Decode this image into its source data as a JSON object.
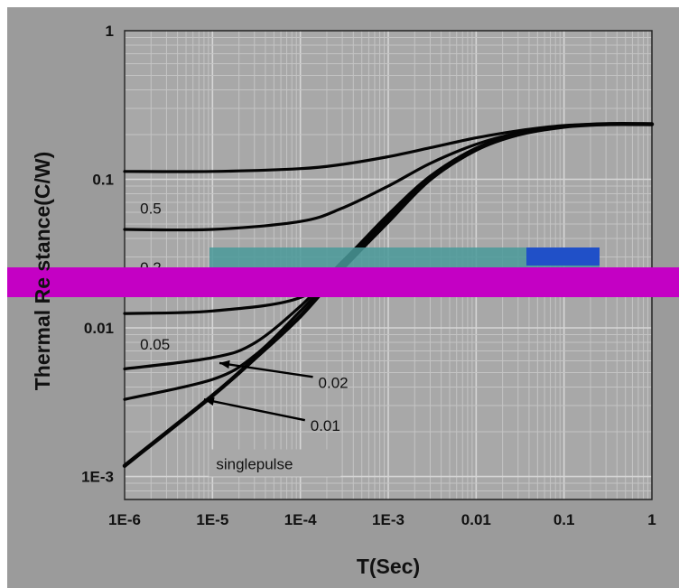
{
  "chart_data": {
    "type": "line",
    "title": "",
    "xlabel": "T(Sec)",
    "ylabel": "Thermal Resistance(C/W)",
    "ylabel_visible": "Thermal Re stance(C/W)",
    "x_scale": "log",
    "y_scale": "log",
    "xlim": [
      1e-06,
      1
    ],
    "ylim": [
      0.0007,
      1
    ],
    "grid": true,
    "legend": "none",
    "x_ticks": [
      "1E-6",
      "1E-5",
      "1E-4",
      "1E-3",
      "0.01",
      "0.1",
      "1"
    ],
    "y_ticks": [
      "1E-3",
      "0.01",
      "0.1",
      "1"
    ],
    "colors": {
      "background": "#9b9b9b",
      "plot_background": "#a8a8a8",
      "grid": "#c4c4c4",
      "curve": "#050505",
      "overlay_band": "#c400c4"
    },
    "series": [
      {
        "name": "0.5",
        "x": [
          1e-06,
          1e-05,
          0.0001,
          0.0003,
          0.001,
          0.003,
          0.01,
          0.03,
          0.1,
          0.3,
          1
        ],
        "y": [
          0.113,
          0.113,
          0.118,
          0.126,
          0.142,
          0.163,
          0.19,
          0.212,
          0.23,
          0.235,
          0.235
        ]
      },
      {
        "name": "0.2",
        "x": [
          1e-06,
          1e-05,
          0.0001,
          0.0003,
          0.001,
          0.003,
          0.01,
          0.03,
          0.1,
          0.3,
          1
        ],
        "y": [
          0.046,
          0.046,
          0.052,
          0.064,
          0.09,
          0.128,
          0.172,
          0.205,
          0.228,
          0.235,
          0.235
        ]
      },
      {
        "name": "0.05",
        "x": [
          1e-06,
          1e-05,
          0.0001,
          0.0003,
          0.001,
          0.003,
          0.01,
          0.03,
          0.1,
          0.3,
          1
        ],
        "y": [
          0.0125,
          0.013,
          0.016,
          0.028,
          0.058,
          0.105,
          0.162,
          0.2,
          0.227,
          0.235,
          0.235
        ]
      },
      {
        "name": "0.02",
        "x": [
          1e-06,
          1e-05,
          3e-05,
          0.0001,
          0.0003,
          0.001,
          0.003,
          0.01,
          0.03,
          0.1,
          0.3,
          1
        ],
        "y": [
          0.0053,
          0.0063,
          0.0079,
          0.014,
          0.027,
          0.055,
          0.102,
          0.16,
          0.2,
          0.227,
          0.235,
          0.235
        ]
      },
      {
        "name": "0.01",
        "x": [
          1e-06,
          1e-05,
          3e-05,
          0.0001,
          0.0003,
          0.001,
          0.003,
          0.01,
          0.03,
          0.1,
          0.3,
          1
        ],
        "y": [
          0.0033,
          0.0045,
          0.0065,
          0.013,
          0.026,
          0.054,
          0.101,
          0.159,
          0.2,
          0.227,
          0.235,
          0.235
        ]
      },
      {
        "name": "singlepulse",
        "x": [
          1e-06,
          1e-05,
          3e-05,
          0.0001,
          0.0003,
          0.001,
          0.003,
          0.01,
          0.03,
          0.1,
          0.3,
          1
        ],
        "y": [
          0.00118,
          0.0035,
          0.0062,
          0.012,
          0.025,
          0.052,
          0.1,
          0.158,
          0.2,
          0.226,
          0.235,
          0.235
        ]
      }
    ],
    "annotations": [
      {
        "text": "0.5",
        "x": 1.5e-06,
        "y": 0.064
      },
      {
        "text": "0.2",
        "x": 1.5e-06,
        "y": 0.0255
      },
      {
        "text": "0.05",
        "x": 1.5e-06,
        "y": 0.0078
      },
      {
        "text": "0.02",
        "x": 0.00016,
        "y": 0.0043,
        "arrow_to_x": 1.2e-05,
        "arrow_to_y": 0.0058
      },
      {
        "text": "0.01",
        "x": 0.00013,
        "y": 0.0022,
        "arrow_to_x": 8e-06,
        "arrow_to_y": 0.0033
      },
      {
        "text": "singlepulse",
        "x": 1.1e-05,
        "y": 0.00115,
        "boxed": true
      }
    ]
  }
}
